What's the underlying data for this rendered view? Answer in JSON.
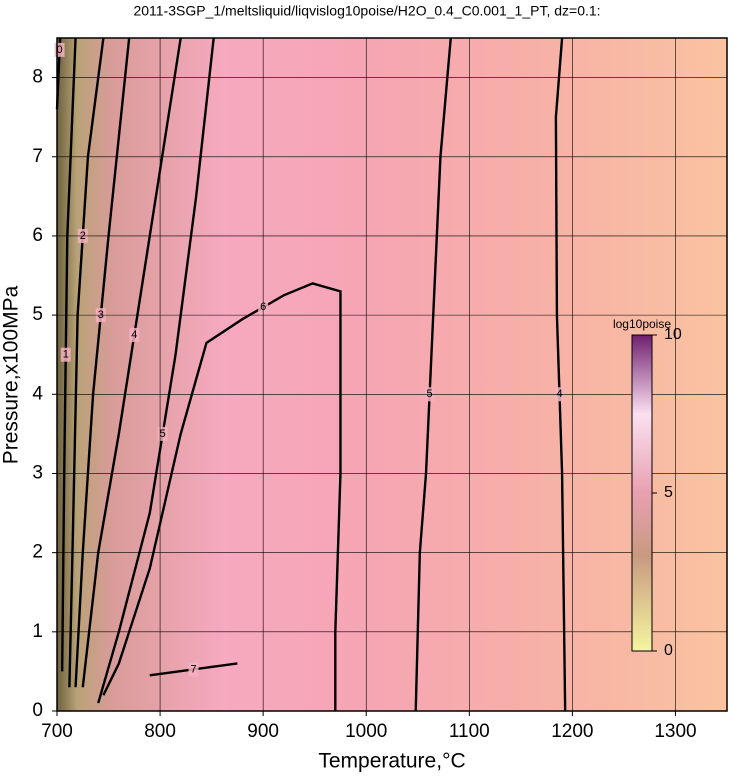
{
  "chart_data": {
    "type": "contour",
    "title": "2011-3SGP_1/meltsliquid/liqvislog10poise/H2O_0.4_C0.001_1_PT, dz=0.1:",
    "x_label": "Temperature,°C",
    "y_label": "Pressure,x100MPa",
    "xlim": [
      700,
      1350
    ],
    "ylim": [
      0,
      8.5
    ],
    "xticks": [
      700,
      800,
      900,
      1000,
      1100,
      1200,
      1300
    ],
    "yticks": [
      0,
      1,
      2,
      3,
      4,
      5,
      6,
      7,
      8
    ],
    "grid": true,
    "contours": [
      {
        "level": 0,
        "x": [
          700,
          702,
          703
        ],
        "y": [
          7.6,
          8.2,
          8.5
        ]
      },
      {
        "level": 1,
        "x": [
          705,
          707,
          710,
          718
        ],
        "y": [
          0.5,
          3,
          6,
          8.5
        ]
      },
      {
        "level": 2,
        "x": [
          712,
          715,
          720,
          730,
          745
        ],
        "y": [
          0.3,
          2,
          5,
          7,
          8.5
        ]
      },
      {
        "level": 3,
        "x": [
          718,
          725,
          735,
          750,
          770
        ],
        "y": [
          0.3,
          2,
          4,
          6,
          8.5
        ]
      },
      {
        "level": 4,
        "x": [
          725,
          740,
          760,
          790,
          820
        ],
        "y": [
          0.3,
          2,
          3.5,
          6,
          8.5
        ]
      },
      {
        "level": 5,
        "x": [
          740,
          760,
          790,
          815,
          835,
          852
        ],
        "y": [
          0.1,
          1,
          2.5,
          4.5,
          6.5,
          8.5
        ]
      },
      {
        "level": 6,
        "x": [
          745,
          760,
          790,
          820,
          845,
          880,
          920,
          948,
          975,
          975,
          970,
          970
        ],
        "y": [
          0.2,
          0.6,
          1.8,
          3.5,
          4.65,
          4.95,
          5.25,
          5.4,
          5.3,
          3,
          1,
          0
        ]
      },
      {
        "level": 7,
        "x": [
          790,
          875
        ],
        "y": [
          0.45,
          0.6
        ]
      },
      {
        "level": 5,
        "x": [
          1048,
          1052,
          1058,
          1065,
          1072,
          1082
        ],
        "y": [
          0,
          2,
          3,
          5,
          7,
          8.5
        ]
      },
      {
        "level": 4,
        "x": [
          1193,
          1192,
          1190,
          1185,
          1184,
          1190
        ],
        "y": [
          0,
          1,
          3,
          5,
          7.5,
          8.5
        ]
      }
    ],
    "colorbar": {
      "label": "log10poise",
      "lim": [
        0,
        10
      ],
      "ticks": [
        0,
        5,
        10
      ]
    }
  }
}
